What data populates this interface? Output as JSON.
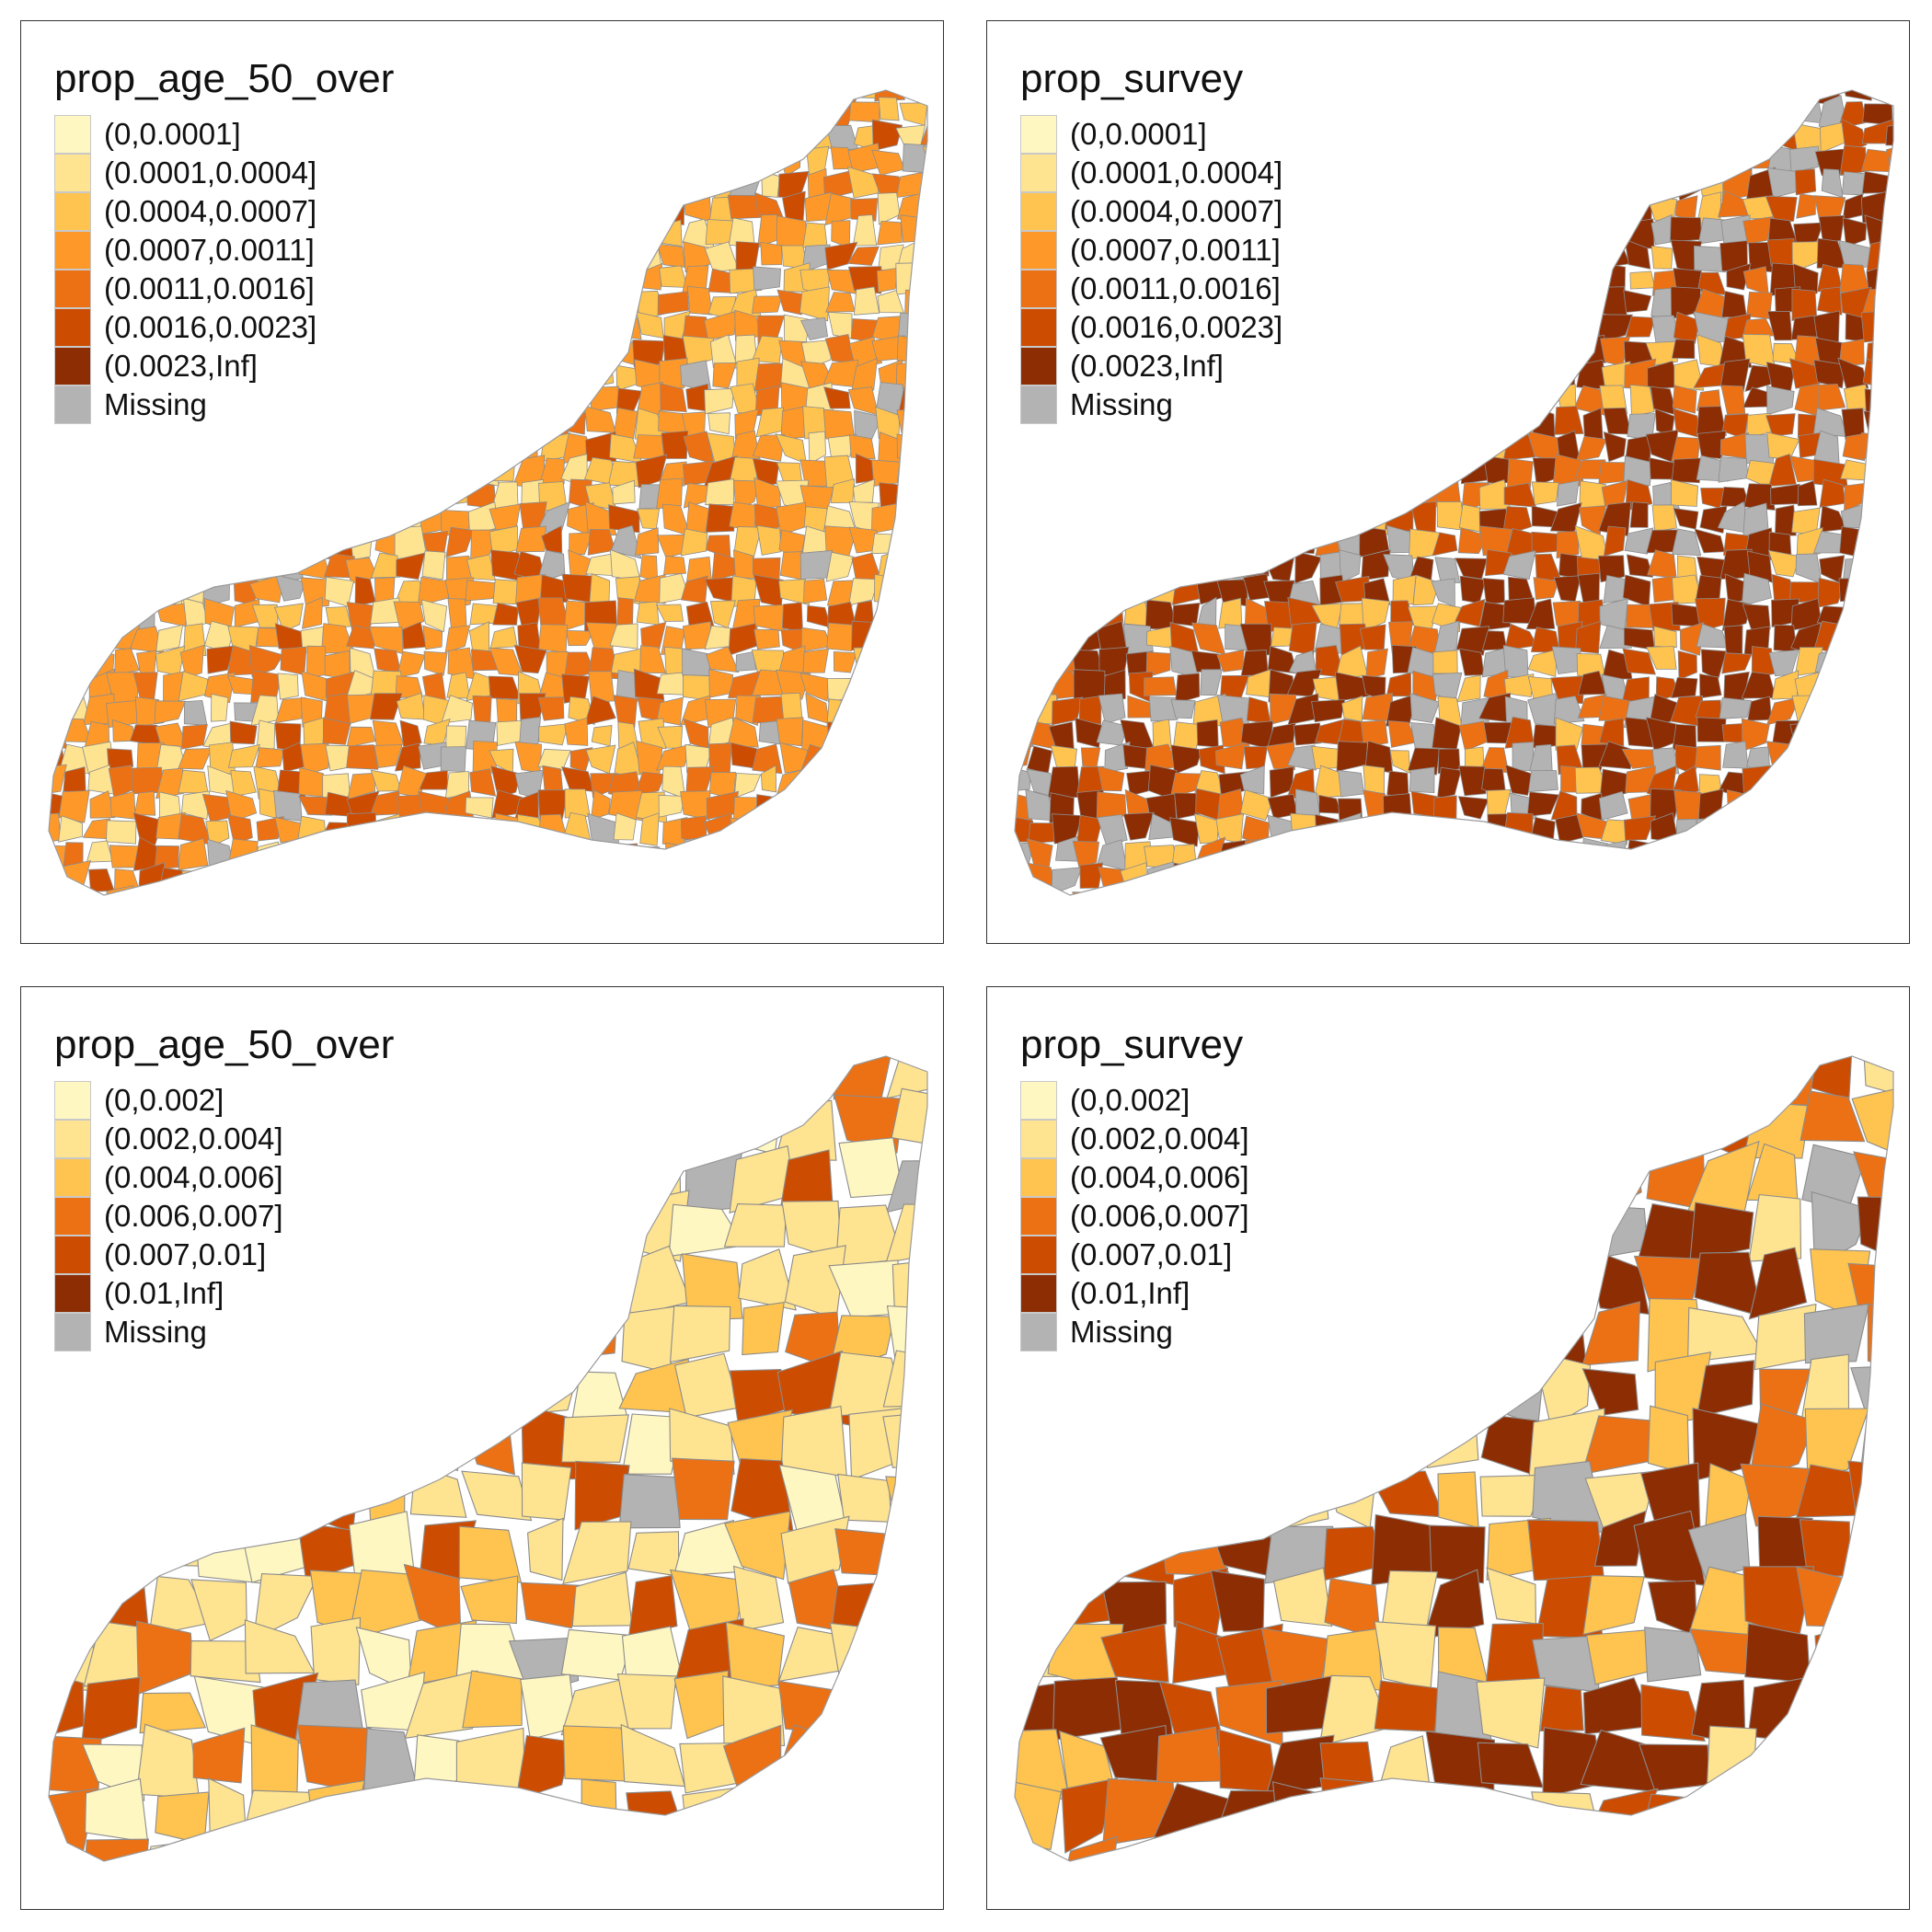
{
  "map": {
    "panels": [
      {
        "id": "top-left",
        "title": "prop_age_50_over",
        "legend": [
          {
            "label": "(0,0.0001]",
            "color": "#fff7c2"
          },
          {
            "label": "(0.0001,0.0004]",
            "color": "#fee391"
          },
          {
            "label": "(0.0004,0.0007]",
            "color": "#fec44f"
          },
          {
            "label": "(0.0007,0.0011]",
            "color": "#fe9929"
          },
          {
            "label": "(0.0011,0.0016]",
            "color": "#ec7014"
          },
          {
            "label": "(0.0016,0.0023]",
            "color": "#cc4c02"
          },
          {
            "label": "(0.0023,Inf]",
            "color": "#8c2d04"
          },
          {
            "label": "Missing",
            "color": "#b3b3b3"
          }
        ],
        "dominant_colors": [
          "#fe9929",
          "#fec44f",
          "#ec7014",
          "#fee391",
          "#cc4c02"
        ],
        "missing_color": "#b3b3b3"
      },
      {
        "id": "top-right",
        "title": "prop_survey",
        "legend": [
          {
            "label": "(0,0.0001]",
            "color": "#fff7c2"
          },
          {
            "label": "(0.0001,0.0004]",
            "color": "#fee391"
          },
          {
            "label": "(0.0004,0.0007]",
            "color": "#fec44f"
          },
          {
            "label": "(0.0007,0.0011]",
            "color": "#fe9929"
          },
          {
            "label": "(0.0011,0.0016]",
            "color": "#ec7014"
          },
          {
            "label": "(0.0016,0.0023]",
            "color": "#cc4c02"
          },
          {
            "label": "(0.0023,Inf]",
            "color": "#8c2d04"
          },
          {
            "label": "Missing",
            "color": "#b3b3b3"
          }
        ],
        "dominant_colors": [
          "#8c2d04",
          "#cc4c02",
          "#ec7014",
          "#fec44f",
          "#b3b3b3"
        ],
        "missing_color": "#b3b3b3"
      },
      {
        "id": "bottom-left",
        "title": "prop_age_50_over",
        "legend": [
          {
            "label": "(0,0.002]",
            "color": "#fff7c2"
          },
          {
            "label": "(0.002,0.004]",
            "color": "#fee391"
          },
          {
            "label": "(0.004,0.006]",
            "color": "#fec44f"
          },
          {
            "label": "(0.006,0.007]",
            "color": "#ec7014"
          },
          {
            "label": "(0.007,0.01]",
            "color": "#cc4c02"
          },
          {
            "label": "(0.01,Inf]",
            "color": "#8c2d04"
          },
          {
            "label": "Missing",
            "color": "#b3b3b3"
          }
        ],
        "dominant_colors": [
          "#fee391",
          "#fec44f",
          "#fff7c2",
          "#ec7014",
          "#cc4c02"
        ],
        "missing_color": "#b3b3b3"
      },
      {
        "id": "bottom-right",
        "title": "prop_survey",
        "legend": [
          {
            "label": "(0,0.002]",
            "color": "#fff7c2"
          },
          {
            "label": "(0.002,0.004]",
            "color": "#fee391"
          },
          {
            "label": "(0.004,0.006]",
            "color": "#fec44f"
          },
          {
            "label": "(0.006,0.007]",
            "color": "#ec7014"
          },
          {
            "label": "(0.007,0.01]",
            "color": "#cc4c02"
          },
          {
            "label": "(0.01,Inf]",
            "color": "#8c2d04"
          },
          {
            "label": "Missing",
            "color": "#b3b3b3"
          }
        ],
        "dominant_colors": [
          "#8c2d04",
          "#cc4c02",
          "#fee391",
          "#fec44f",
          "#ec7014"
        ],
        "missing_color": "#b3b3b3"
      }
    ]
  }
}
